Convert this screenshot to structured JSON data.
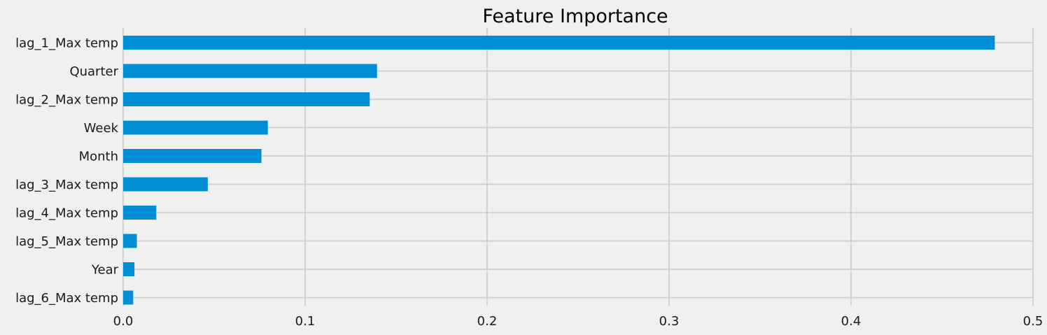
{
  "chart_data": {
    "type": "bar",
    "orientation": "horizontal",
    "title": "Feature Importance",
    "xlabel": "",
    "ylabel": "",
    "categories": [
      "lag_1_Max temp",
      "Quarter",
      "lag_2_Max temp",
      "Week",
      "Month",
      "lag_3_Max temp",
      "lag_4_Max temp",
      "lag_5_Max temp",
      "Year",
      "lag_6_Max temp"
    ],
    "values": [
      0.479,
      0.1395,
      0.1355,
      0.0795,
      0.076,
      0.0465,
      0.0182,
      0.0075,
      0.0062,
      0.0055
    ],
    "xlim": [
      0,
      0.5
    ],
    "xticks": [
      0.0,
      0.1,
      0.2,
      0.3,
      0.4,
      0.5
    ],
    "xtick_labels": [
      "0.0",
      "0.1",
      "0.2",
      "0.3",
      "0.4",
      "0.5"
    ],
    "grid": true,
    "legend": "none",
    "colors": {
      "bar": "#008fd5",
      "background": "#f0f0f0",
      "grid": "#cbcbcb"
    }
  }
}
